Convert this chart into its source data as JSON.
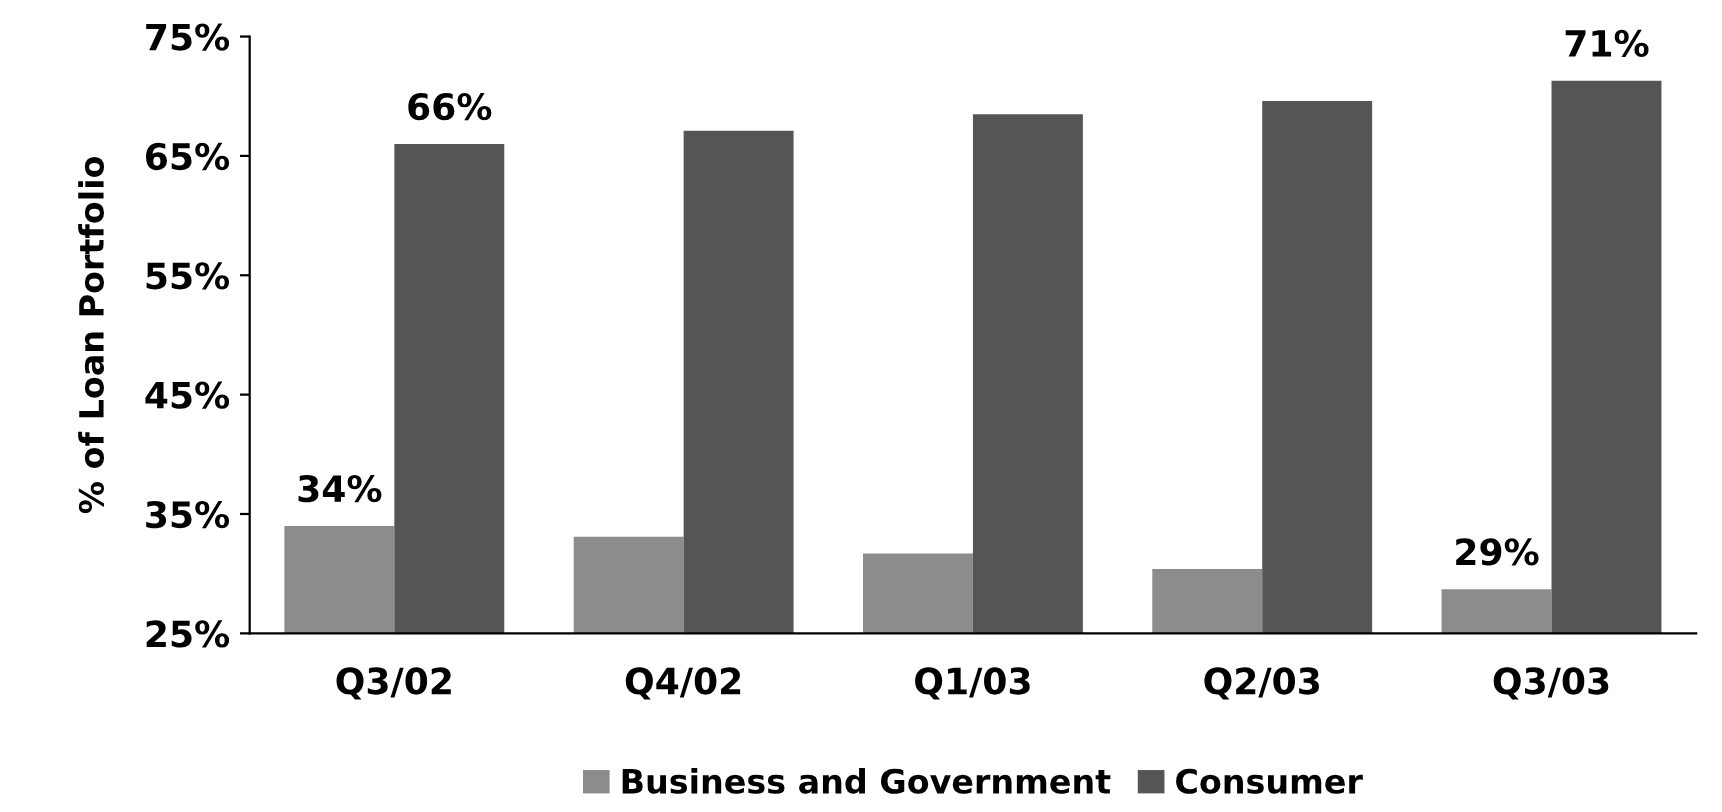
{
  "chart_data": {
    "type": "bar",
    "ylabel": "% of Loan Portfolio",
    "categories": [
      "Q3/02",
      "Q4/02",
      "Q1/03",
      "Q2/03",
      "Q3/03"
    ],
    "series": [
      {
        "name": "Business and Government",
        "color": "#8c8c8c",
        "values": [
          34,
          33.1,
          31.7,
          30.4,
          28.7
        ],
        "value_labels": [
          "34%",
          null,
          null,
          null,
          "29%"
        ]
      },
      {
        "name": "Consumer",
        "color": "#555555",
        "values": [
          66,
          67.1,
          68.5,
          69.6,
          71.3
        ],
        "value_labels": [
          "66%",
          null,
          null,
          null,
          "71%"
        ]
      }
    ],
    "ylim": [
      25,
      75
    ],
    "yticks": [
      {
        "value": 25,
        "label": "25%"
      },
      {
        "value": 35,
        "label": "35%"
      },
      {
        "value": 45,
        "label": "45%"
      },
      {
        "value": 55,
        "label": "55%"
      },
      {
        "value": 65,
        "label": "65%"
      },
      {
        "value": 75,
        "label": "75%"
      }
    ],
    "grid": false,
    "legend": "bottom"
  }
}
